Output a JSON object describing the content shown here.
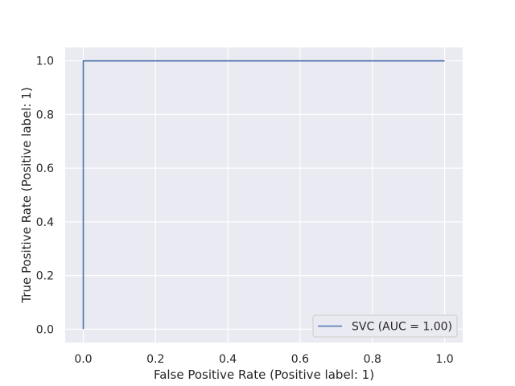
{
  "chart_data": {
    "type": "line",
    "title": "",
    "xlabel": "False Positive Rate (Positive label: 1)",
    "ylabel": "True Positive Rate (Positive label: 1)",
    "xlim": [
      -0.05,
      1.05
    ],
    "ylim": [
      -0.05,
      1.05
    ],
    "xticks": [
      0.0,
      0.2,
      0.4,
      0.6,
      0.8,
      1.0
    ],
    "xtick_labels": [
      "0.0",
      "0.2",
      "0.4",
      "0.6",
      "0.8",
      "1.0"
    ],
    "yticks": [
      0.0,
      0.2,
      0.4,
      0.6,
      0.8,
      1.0
    ],
    "ytick_labels": [
      "0.0",
      "0.2",
      "0.4",
      "0.6",
      "0.8",
      "1.0"
    ],
    "grid": true,
    "background_color": "#eaeaf2",
    "grid_color": "#ffffff",
    "legend_position": "lower-right",
    "series": [
      {
        "name": "SVC (AUC = 1.00)",
        "color": "#4c72b0",
        "x": [
          0.0,
          0.0,
          1.0
        ],
        "y": [
          0.0,
          1.0,
          1.0
        ]
      }
    ]
  }
}
